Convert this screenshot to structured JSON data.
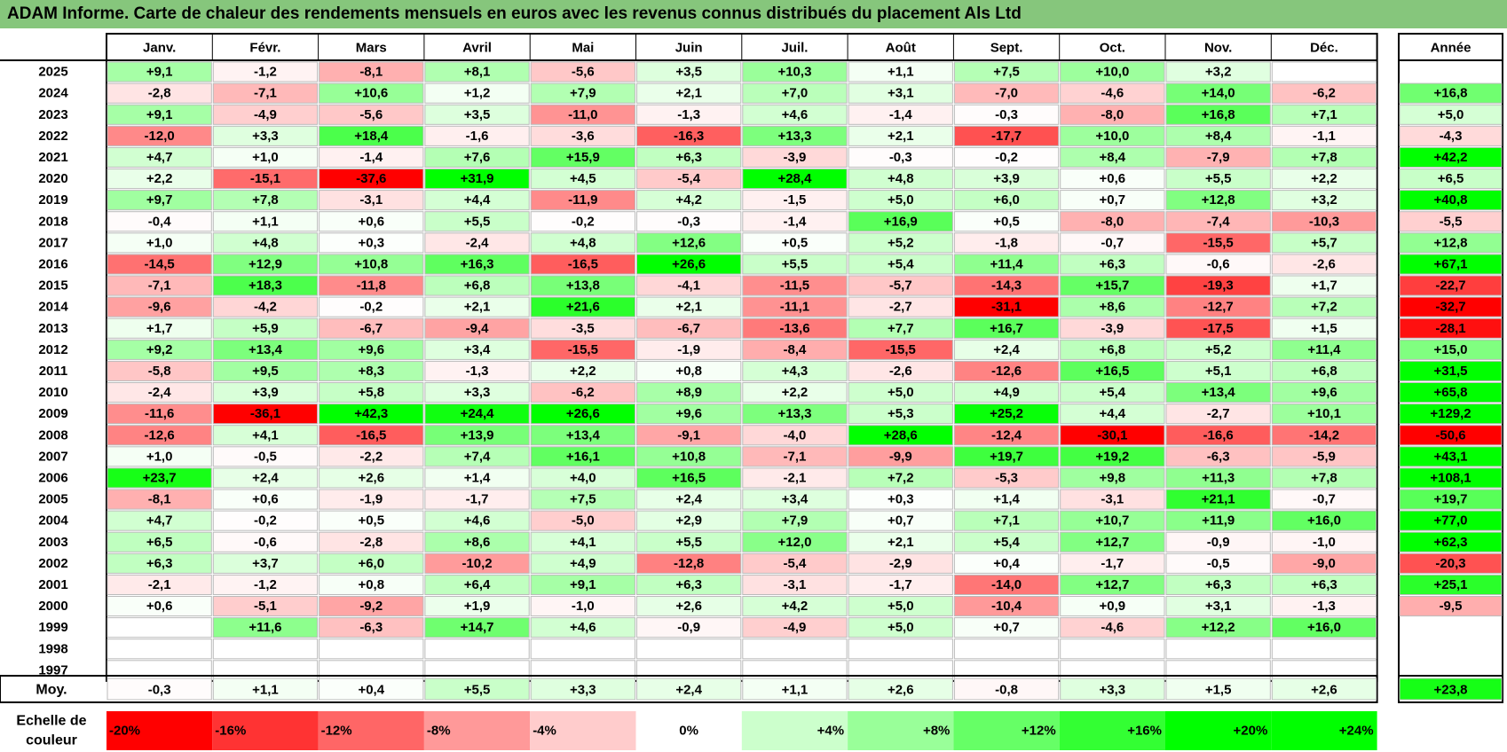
{
  "title": "ADAM Informe. Carte de chaleur des rendements mensuels en euros avec les revenus connus distribués du placement Als Ltd",
  "chart_data": {
    "type": "heatmap",
    "title": "ADAM Informe. Carte de chaleur des rendements mensuels en euros avec les revenus connus distribués du placement Als Ltd",
    "months": [
      "Janv.",
      "Févr.",
      "Mars",
      "Avril",
      "Mai",
      "Juin",
      "Juil.",
      "Août",
      "Sept.",
      "Oct.",
      "Nov.",
      "Déc."
    ],
    "year_header": "Année",
    "average_label": "Moy.",
    "rows": [
      {
        "year": "2025",
        "values": [
          "+9,1",
          "-1,2",
          "-8,1",
          "+8,1",
          "-5,6",
          "+3,5",
          "+10,3",
          "+1,1",
          "+7,5",
          "+10,0",
          "+3,2",
          ""
        ],
        "annual": ""
      },
      {
        "year": "2024",
        "values": [
          "-2,8",
          "-7,1",
          "+10,6",
          "+1,2",
          "+7,9",
          "+2,1",
          "+7,0",
          "+3,1",
          "-7,0",
          "-4,6",
          "+14,0",
          "-6,2"
        ],
        "annual": "+16,8"
      },
      {
        "year": "2023",
        "values": [
          "+9,1",
          "-4,9",
          "-5,6",
          "+3,5",
          "-11,0",
          "-1,3",
          "+4,6",
          "-1,4",
          "-0,3",
          "-8,0",
          "+16,8",
          "+7,1"
        ],
        "annual": "+5,0"
      },
      {
        "year": "2022",
        "values": [
          "-12,0",
          "+3,3",
          "+18,4",
          "-1,6",
          "-3,6",
          "-16,3",
          "+13,3",
          "+2,1",
          "-17,7",
          "+10,0",
          "+8,4",
          "-1,1"
        ],
        "annual": "-4,3"
      },
      {
        "year": "2021",
        "values": [
          "+4,7",
          "+1,0",
          "-1,4",
          "+7,6",
          "+15,9",
          "+6,3",
          "-3,9",
          "-0,3",
          "-0,2",
          "+8,4",
          "-7,9",
          "+7,8"
        ],
        "annual": "+42,2"
      },
      {
        "year": "2020",
        "values": [
          "+2,2",
          "-15,1",
          "-37,6",
          "+31,9",
          "+4,5",
          "-5,4",
          "+28,4",
          "+4,8",
          "+3,9",
          "+0,6",
          "+5,5",
          "+2,2"
        ],
        "annual": "+6,5"
      },
      {
        "year": "2019",
        "values": [
          "+9,7",
          "+7,8",
          "-3,1",
          "+4,4",
          "-11,9",
          "+4,2",
          "-1,5",
          "+5,0",
          "+6,0",
          "+0,7",
          "+12,8",
          "+3,2"
        ],
        "annual": "+40,8"
      },
      {
        "year": "2018",
        "values": [
          "-0,4",
          "+1,1",
          "+0,6",
          "+5,5",
          "-0,2",
          "-0,3",
          "-1,4",
          "+16,9",
          "+0,5",
          "-8,0",
          "-7,4",
          "-10,3"
        ],
        "annual": "-5,5"
      },
      {
        "year": "2017",
        "values": [
          "+1,0",
          "+4,8",
          "+0,3",
          "-2,4",
          "+4,8",
          "+12,6",
          "+0,5",
          "+5,2",
          "-1,8",
          "-0,7",
          "-15,5",
          "+5,7"
        ],
        "annual": "+12,8"
      },
      {
        "year": "2016",
        "values": [
          "-14,5",
          "+12,9",
          "+10,8",
          "+16,3",
          "-16,5",
          "+26,6",
          "+5,5",
          "+5,4",
          "+11,4",
          "+6,3",
          "-0,6",
          "-2,6"
        ],
        "annual": "+67,1"
      },
      {
        "year": "2015",
        "values": [
          "-7,1",
          "+18,3",
          "-11,8",
          "+6,8",
          "+13,8",
          "-4,1",
          "-11,5",
          "-5,7",
          "-14,3",
          "+15,7",
          "-19,3",
          "+1,7"
        ],
        "annual": "-22,7"
      },
      {
        "year": "2014",
        "values": [
          "-9,6",
          "-4,2",
          "-0,2",
          "+2,1",
          "+21,6",
          "+2,1",
          "-11,1",
          "-2,7",
          "-31,1",
          "+8,6",
          "-12,7",
          "+7,2"
        ],
        "annual": "-32,7"
      },
      {
        "year": "2013",
        "values": [
          "+1,7",
          "+5,9",
          "-6,7",
          "-9,4",
          "-3,5",
          "-6,7",
          "-13,6",
          "+7,7",
          "+16,7",
          "-3,9",
          "-17,5",
          "+1,5"
        ],
        "annual": "-28,1"
      },
      {
        "year": "2012",
        "values": [
          "+9,2",
          "+13,4",
          "+9,6",
          "+3,4",
          "-15,5",
          "-1,9",
          "-8,4",
          "-15,5",
          "+2,4",
          "+6,8",
          "+5,2",
          "+11,4"
        ],
        "annual": "+15,0"
      },
      {
        "year": "2011",
        "values": [
          "-5,8",
          "+9,5",
          "+8,3",
          "-1,3",
          "+2,2",
          "+0,8",
          "+4,3",
          "-2,6",
          "-12,6",
          "+16,5",
          "+5,1",
          "+6,8"
        ],
        "annual": "+31,5"
      },
      {
        "year": "2010",
        "values": [
          "-2,4",
          "+3,9",
          "+5,8",
          "+3,3",
          "-6,2",
          "+8,9",
          "+2,2",
          "+5,0",
          "+4,9",
          "+5,4",
          "+13,4",
          "+9,6"
        ],
        "annual": "+65,8"
      },
      {
        "year": "2009",
        "values": [
          "-11,6",
          "-36,1",
          "+42,3",
          "+24,4",
          "+26,6",
          "+9,6",
          "+13,3",
          "+5,3",
          "+25,2",
          "+4,4",
          "-2,7",
          "+10,1"
        ],
        "annual": "+129,2"
      },
      {
        "year": "2008",
        "values": [
          "-12,6",
          "+4,1",
          "-16,5",
          "+13,9",
          "+13,4",
          "-9,1",
          "-4,0",
          "+28,6",
          "-12,4",
          "-30,1",
          "-16,6",
          "-14,2"
        ],
        "annual": "-50,6"
      },
      {
        "year": "2007",
        "values": [
          "+1,0",
          "-0,5",
          "-2,2",
          "+7,4",
          "+16,1",
          "+10,8",
          "-7,1",
          "-9,9",
          "+19,7",
          "+19,2",
          "-6,3",
          "-5,9"
        ],
        "annual": "+43,1"
      },
      {
        "year": "2006",
        "values": [
          "+23,7",
          "+2,4",
          "+2,6",
          "+1,4",
          "+4,0",
          "+16,5",
          "-2,1",
          "+7,2",
          "-5,3",
          "+9,8",
          "+11,3",
          "+7,8"
        ],
        "annual": "+108,1"
      },
      {
        "year": "2005",
        "values": [
          "-8,1",
          "+0,6",
          "-1,9",
          "-1,7",
          "+7,5",
          "+2,4",
          "+3,4",
          "+0,3",
          "+1,4",
          "-3,1",
          "+21,1",
          "-0,7"
        ],
        "annual": "+19,7"
      },
      {
        "year": "2004",
        "values": [
          "+4,7",
          "-0,2",
          "+0,5",
          "+4,6",
          "-5,0",
          "+2,9",
          "+7,9",
          "+0,7",
          "+7,1",
          "+10,7",
          "+11,9",
          "+16,0"
        ],
        "annual": "+77,0"
      },
      {
        "year": "2003",
        "values": [
          "+6,5",
          "-0,6",
          "-2,8",
          "+8,6",
          "+4,1",
          "+5,5",
          "+12,0",
          "+2,1",
          "+5,4",
          "+12,7",
          "-0,9",
          "-1,0"
        ],
        "annual": "+62,3"
      },
      {
        "year": "2002",
        "values": [
          "+6,3",
          "+3,7",
          "+6,0",
          "-10,2",
          "+4,9",
          "-12,8",
          "-5,4",
          "-2,9",
          "+0,4",
          "-1,7",
          "-0,5",
          "-9,0"
        ],
        "annual": "-20,3"
      },
      {
        "year": "2001",
        "values": [
          "-2,1",
          "-1,2",
          "+0,8",
          "+6,4",
          "+9,1",
          "+6,3",
          "-3,1",
          "-1,7",
          "-14,0",
          "+12,7",
          "+6,3",
          "+6,3"
        ],
        "annual": "+25,1"
      },
      {
        "year": "2000",
        "values": [
          "+0,6",
          "-5,1",
          "-9,2",
          "+1,9",
          "-1,0",
          "+2,6",
          "+4,2",
          "+5,0",
          "-10,4",
          "+0,9",
          "+3,1",
          "-1,3"
        ],
        "annual": "-9,5"
      },
      {
        "year": "1999",
        "values": [
          "",
          "+11,6",
          "-6,3",
          "+14,7",
          "+4,6",
          "-0,9",
          "-4,9",
          "+5,0",
          "+0,7",
          "-4,6",
          "+12,2",
          "+16,0"
        ],
        "annual": ""
      },
      {
        "year": "1998",
        "values": [
          "",
          "",
          "",
          "",
          "",
          "",
          "",
          "",
          "",
          "",
          "",
          ""
        ],
        "annual": ""
      },
      {
        "year": "1997",
        "values": [
          "",
          "",
          "",
          "",
          "",
          "",
          "",
          "",
          "",
          "",
          "",
          ""
        ],
        "annual": ""
      }
    ],
    "averages": {
      "values": [
        "-0,3",
        "+1,1",
        "+0,4",
        "+5,5",
        "+3,3",
        "+2,4",
        "+1,1",
        "+2,6",
        "-0,8",
        "+3,3",
        "+1,5",
        "+2,6"
      ],
      "annual": "+23,8"
    },
    "color_scale": {
      "label_line1": "Echelle de",
      "label_line2": "couleur",
      "stops": [
        "-20%",
        "-16%",
        "-12%",
        "-8%",
        "-4%",
        "0%",
        "+4%",
        "+8%",
        "+12%",
        "+16%",
        "+20%",
        "+24%"
      ],
      "negative_max_color": "#ff0000",
      "positive_max_color": "#00ff00",
      "neutral_color": "#ffffff"
    }
  }
}
